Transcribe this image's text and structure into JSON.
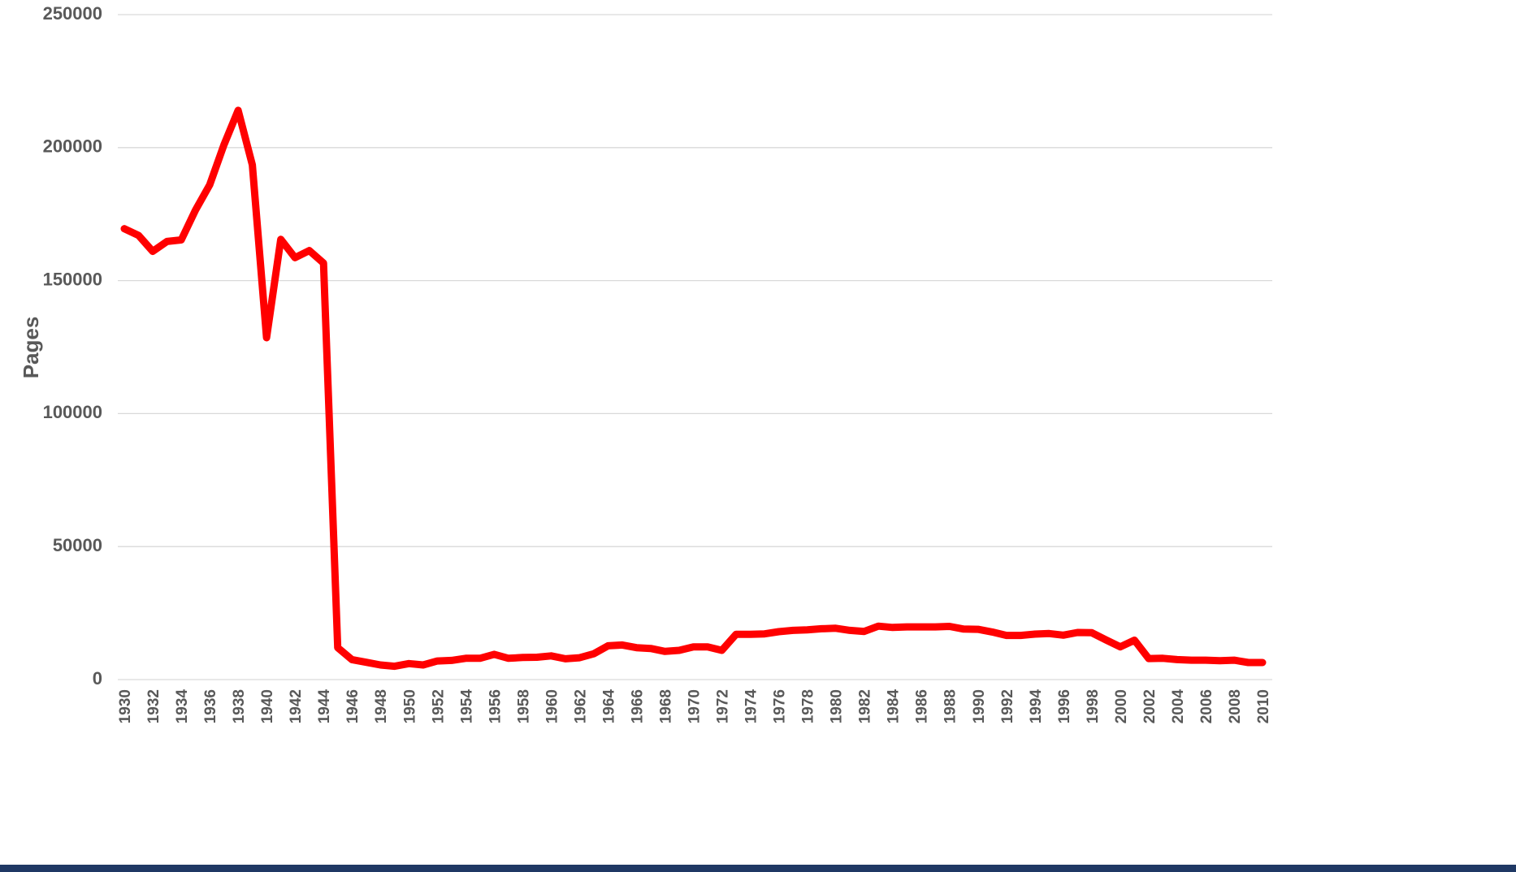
{
  "colors": {
    "series": "#ff0000",
    "bottom_bar": "#1f3864"
  },
  "chart_data": {
    "type": "line",
    "title": "",
    "xlabel": "",
    "ylabel": "Pages",
    "ylim": [
      0,
      250000
    ],
    "yticks": [
      0,
      50000,
      100000,
      150000,
      200000,
      250000
    ],
    "ytick_labels": [
      "0",
      "50000",
      "100000",
      "150000",
      "200000",
      "250000"
    ],
    "grid": true,
    "legend": "none",
    "x": [
      1930,
      1931,
      1932,
      1933,
      1934,
      1935,
      1936,
      1937,
      1938,
      1939,
      1940,
      1941,
      1942,
      1943,
      1944,
      1945,
      1946,
      1947,
      1948,
      1949,
      1950,
      1951,
      1952,
      1953,
      1954,
      1955,
      1956,
      1957,
      1958,
      1959,
      1960,
      1961,
      1962,
      1963,
      1964,
      1965,
      1966,
      1967,
      1968,
      1969,
      1970,
      1971,
      1972,
      1973,
      1974,
      1975,
      1976,
      1977,
      1978,
      1979,
      1980,
      1981,
      1982,
      1983,
      1984,
      1985,
      1986,
      1987,
      1988,
      1989,
      1990,
      1991,
      1992,
      1993,
      1994,
      1995,
      1996,
      1997,
      1998,
      1999,
      2000,
      2001,
      2002,
      2003,
      2004,
      2005,
      2006,
      2007,
      2008,
      2009,
      2010
    ],
    "xtick_labels": [
      "1930",
      "1932",
      "1934",
      "1936",
      "1938",
      "1940",
      "1942",
      "1944",
      "1946",
      "1948",
      "1950",
      "1952",
      "1954",
      "1956",
      "1958",
      "1960",
      "1962",
      "1964",
      "1966",
      "1968",
      "1970",
      "1972",
      "1974",
      "1976",
      "1978",
      "1980",
      "1982",
      "1984",
      "1986",
      "1988",
      "1990",
      "1992",
      "1994",
      "1996",
      "1998",
      "2000",
      "2002",
      "2004",
      "2006",
      "2008",
      "2010"
    ],
    "series": [
      {
        "values": [
          169500,
          167000,
          161000,
          164700,
          165300,
          176500,
          186000,
          201000,
          214000,
          193500,
          128500,
          165500,
          158600,
          161300,
          156600,
          12000,
          7500,
          6500,
          5500,
          5000,
          6000,
          5500,
          7000,
          7200,
          8000,
          8000,
          9500,
          8000,
          8300,
          8400,
          8900,
          7800,
          8200,
          9700,
          12700,
          13000,
          12000,
          11700,
          10600,
          11000,
          12300,
          12300,
          11000,
          17000,
          17000,
          17200,
          18000,
          18500,
          18700,
          19100,
          19300,
          18500,
          18100,
          20100,
          19600,
          19800,
          19800,
          19800,
          20000,
          19000,
          18900,
          17900,
          16600,
          16600,
          17100,
          17300,
          16700,
          17700,
          17600,
          14900,
          12300,
          14800,
          7900,
          8000,
          7500,
          7300,
          7300,
          7100,
          7300,
          6400,
          6400
        ]
      }
    ]
  }
}
